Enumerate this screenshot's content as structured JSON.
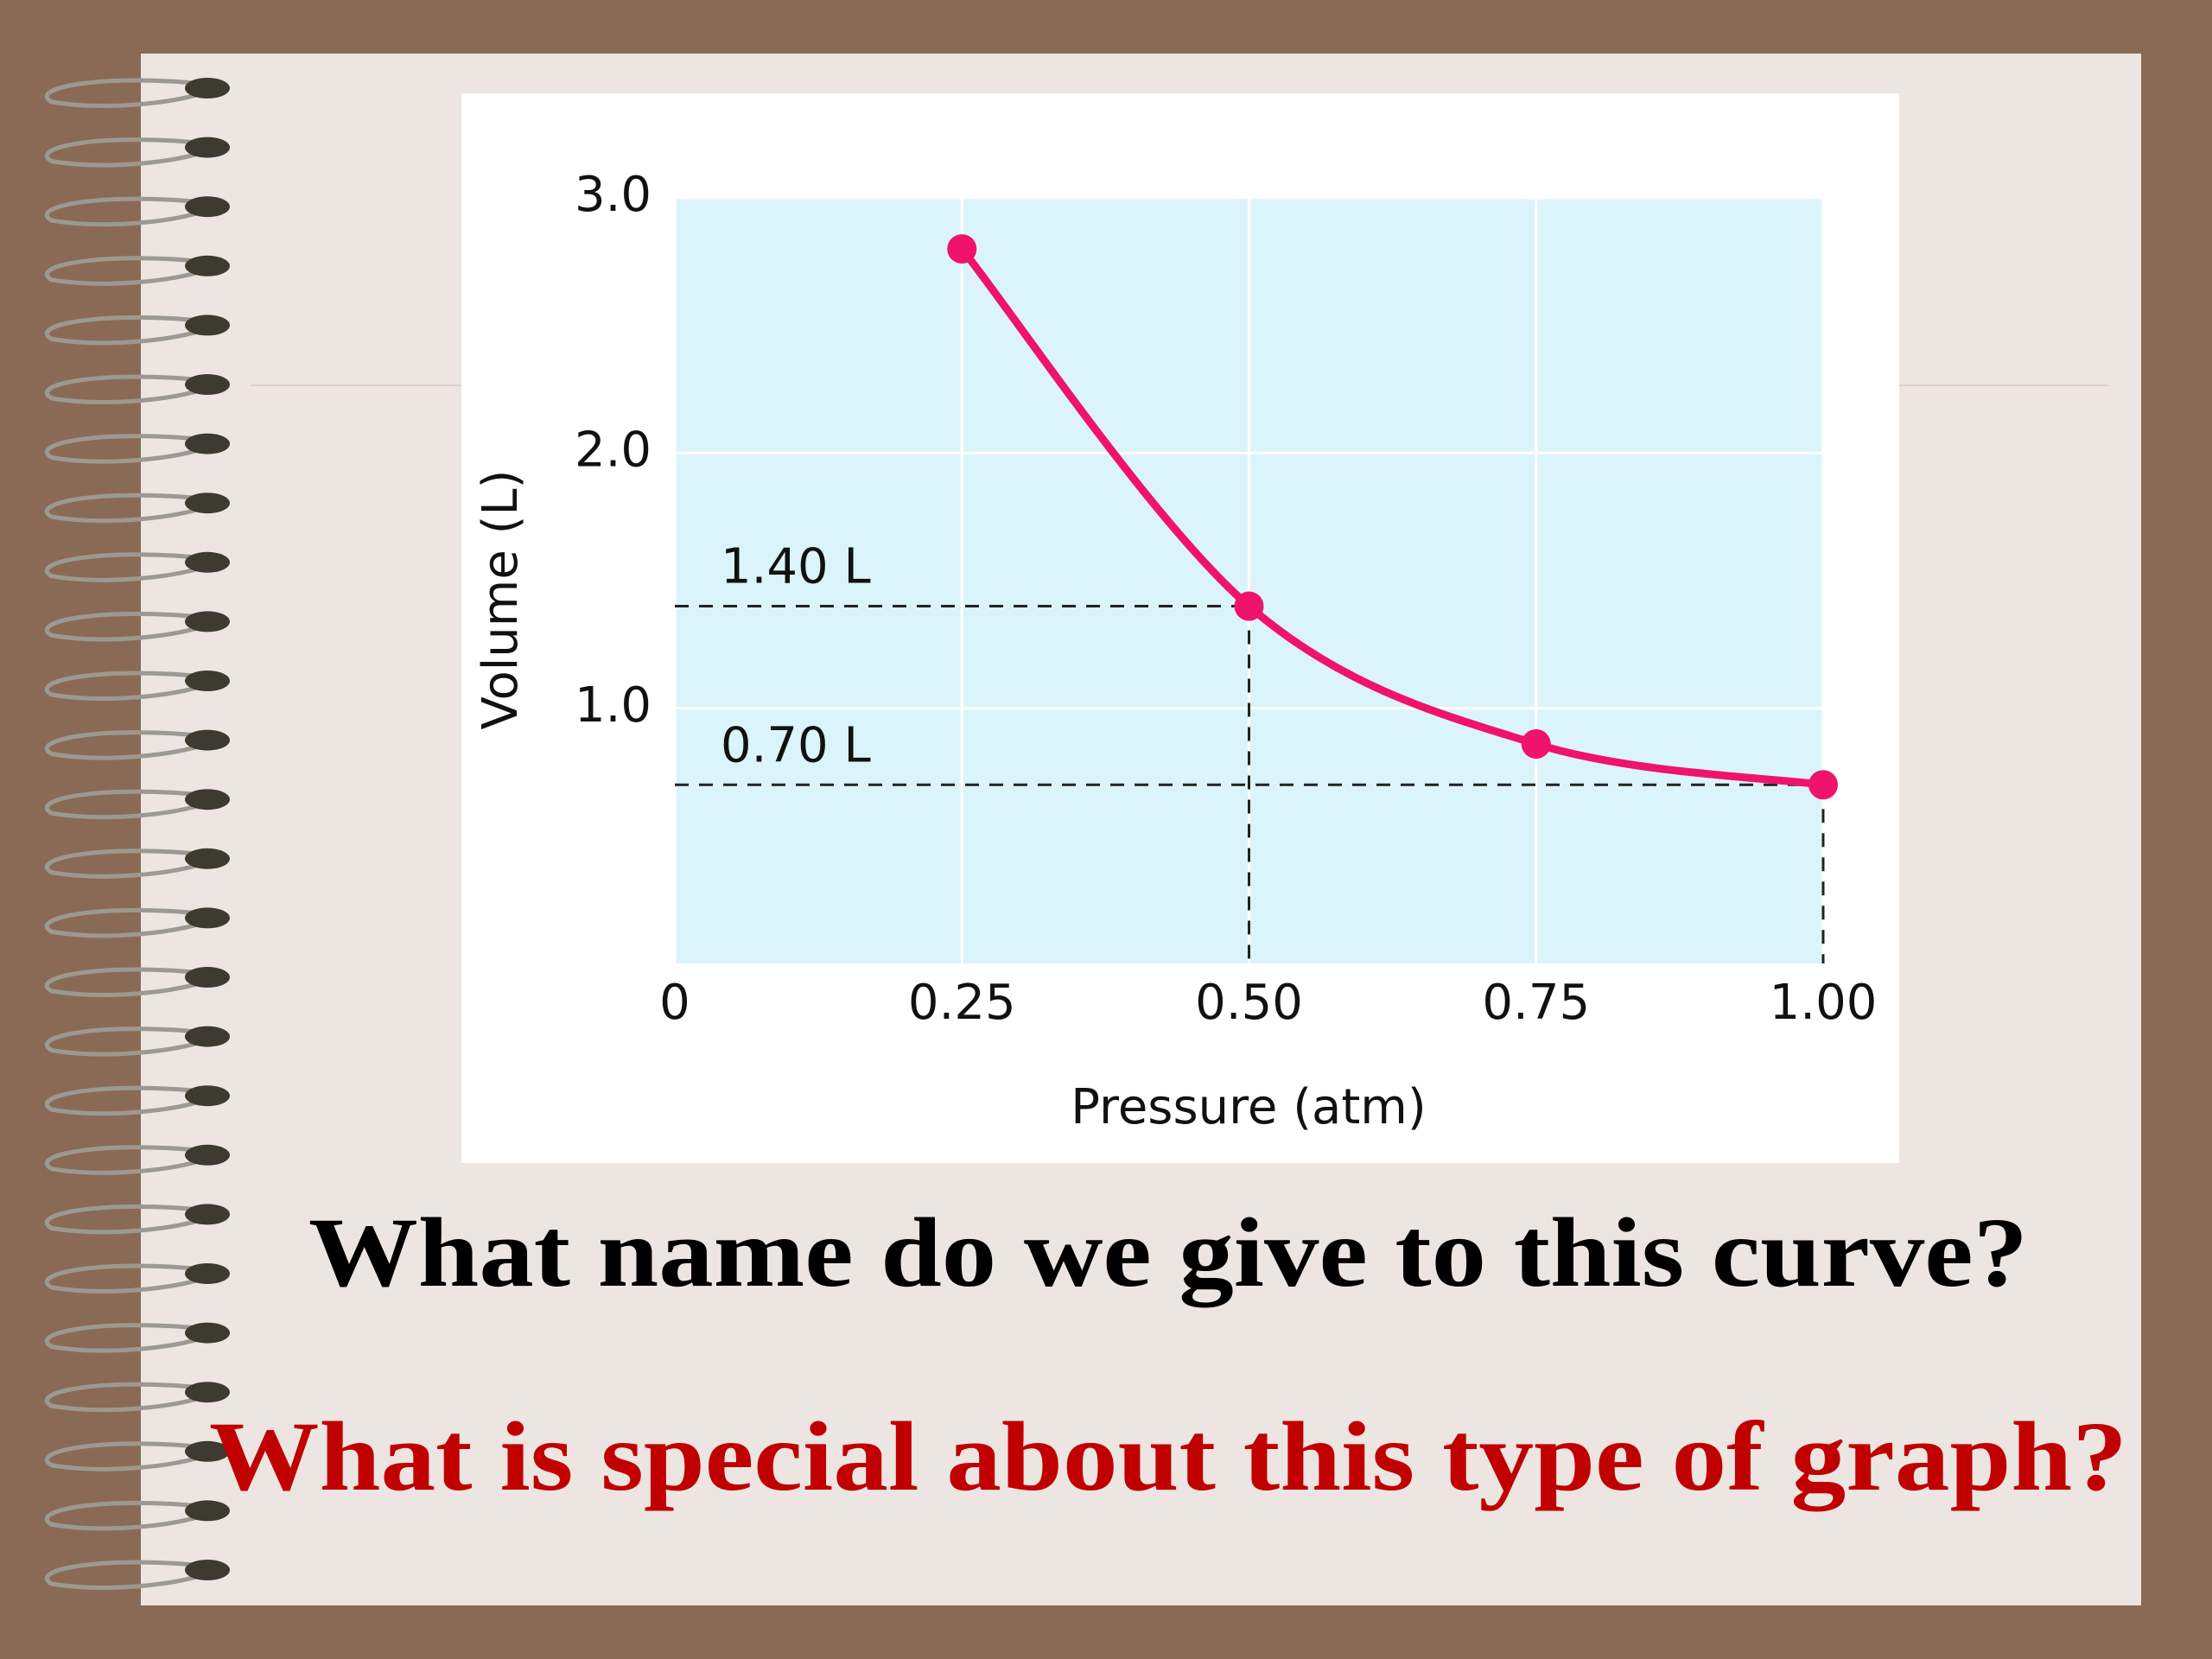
{
  "chart_data": {
    "type": "line",
    "x": [
      0.25,
      0.5,
      0.75,
      1.0
    ],
    "series": [
      {
        "color": "#f0136b",
        "values": [
          2.8,
          1.4,
          0.86,
          0.7
        ]
      }
    ],
    "xlabel": "Pressure (atm)",
    "ylabel": "Volume (L)",
    "xlim": [
      0,
      1
    ],
    "ylim": [
      0,
      3
    ],
    "xticks": [
      0,
      0.25,
      {
        "value": 0.5,
        "label": "0.50"
      },
      0.75,
      {
        "value": 1,
        "label": "1.00"
      }
    ],
    "yticks": [
      {
        "value": 1,
        "label": "1.0"
      },
      {
        "value": 2,
        "label": "2.0"
      },
      {
        "value": 3,
        "label": "3.0"
      }
    ],
    "grid": true,
    "annotations": [
      {
        "label": "1.40 L",
        "x": 0.5,
        "y": 1.4
      },
      {
        "label": "0.70 L",
        "x": 1.0,
        "y": 0.7
      }
    ]
  },
  "slide": {
    "questions": [
      {
        "text": "What name do we give to this curve?",
        "color": "#000000"
      },
      {
        "text": "What is special about this type of graph?",
        "color": "#c00000"
      }
    ]
  }
}
